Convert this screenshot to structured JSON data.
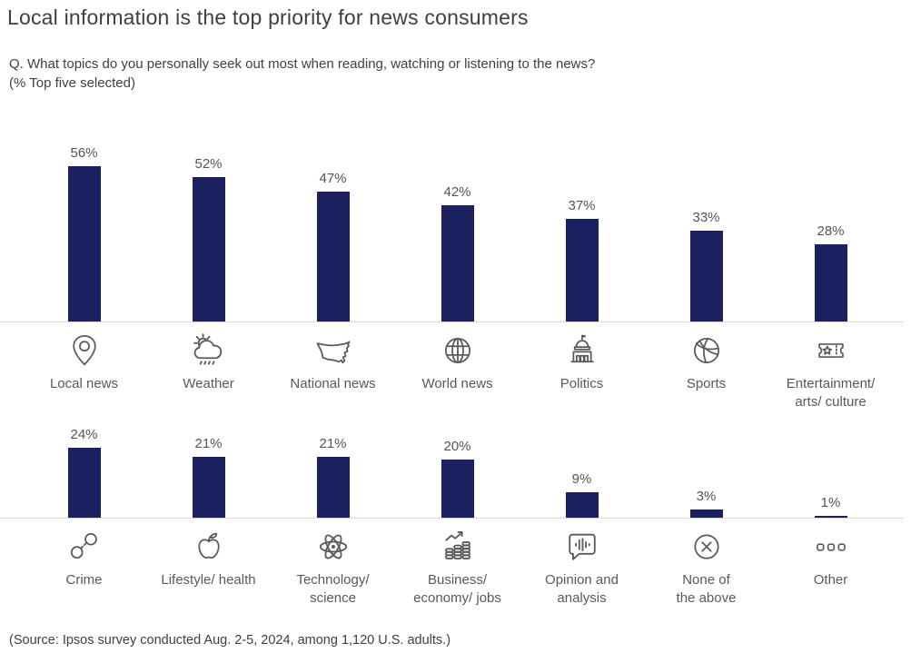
{
  "header": {
    "title": "Local information is the top priority for news consumers",
    "subtitle_line1": "Q. What topics do you personally seek out most when reading, watching or listening to the news?",
    "subtitle_line2": "(% Top five selected)"
  },
  "footer": {
    "source": "(Source: Ipsos survey conducted Aug. 2-5, 2024, among 1,120 U.S. adults.)"
  },
  "colors": {
    "bar": "#1b2160",
    "baseline": "#d9d9d9",
    "title_text": "#3f3f3f",
    "body_text": "#595959"
  },
  "chart_data": {
    "type": "bar",
    "title": "Local information is the top priority for news consumers",
    "unit": "percent",
    "ylim": [
      0,
      60
    ],
    "grid": false,
    "legend": "none",
    "rows": [
      {
        "categories": [
          "Local news",
          "Weather",
          "National news",
          "World news",
          "Politics",
          "Sports",
          "Entertainment/\narts/ culture"
        ],
        "values": [
          56,
          52,
          47,
          42,
          37,
          33,
          28
        ],
        "labels": [
          "56%",
          "52%",
          "47%",
          "42%",
          "37%",
          "33%",
          "28%"
        ],
        "icons": [
          "location-pin-icon",
          "sun-cloud-rain-icon",
          "us-map-icon",
          "globe-icon",
          "capitol-icon",
          "volleyball-icon",
          "ticket-icon"
        ]
      },
      {
        "categories": [
          "Crime",
          "Lifestyle/ health",
          "Technology/\nscience",
          "Business/\neconomy/ jobs",
          "Opinion and\nanalysis",
          "None of\nthe above",
          "Other"
        ],
        "values": [
          24,
          21,
          21,
          20,
          9,
          3,
          1
        ],
        "labels": [
          "24%",
          "21%",
          "21%",
          "20%",
          "9%",
          "3%",
          "1%"
        ],
        "icons": [
          "handcuffs-icon",
          "apple-icon",
          "atom-icon",
          "coin-stacks-growth-icon",
          "speech-bubble-equalizer-icon",
          "circle-x-icon",
          "ellipsis-icon"
        ]
      }
    ]
  }
}
